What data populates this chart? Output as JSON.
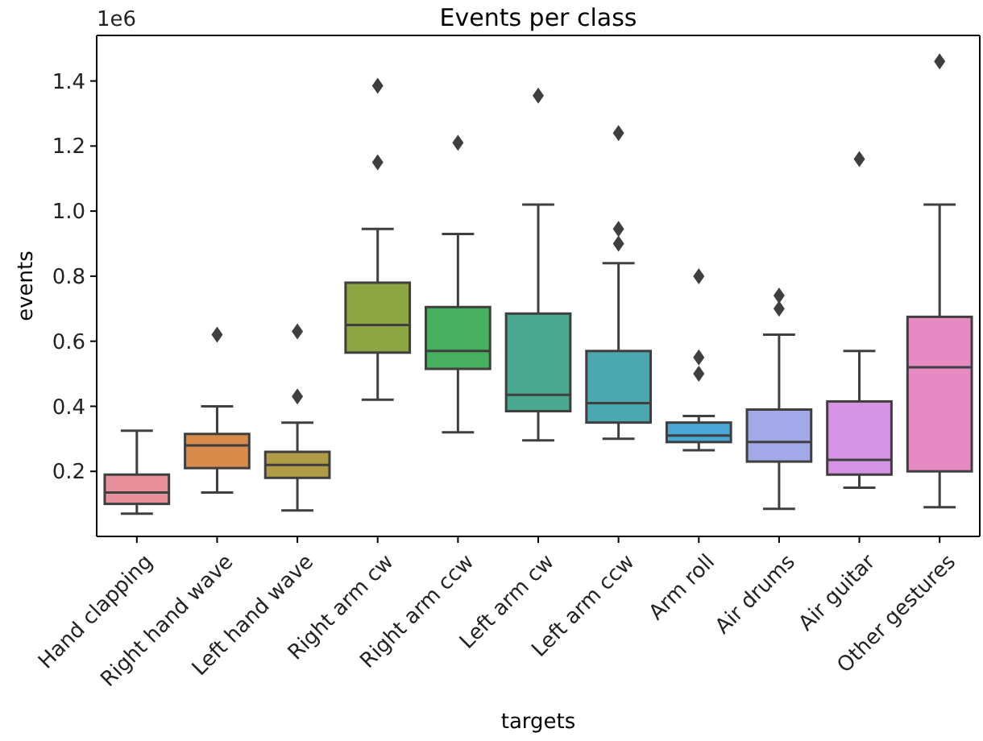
{
  "chart_data": {
    "type": "box",
    "title": "Events per class",
    "xlabel": "targets",
    "ylabel": "events",
    "annotations": [
      "1e6"
    ],
    "categories": [
      "Hand clapping",
      "Right hand wave",
      "Left hand wave",
      "Right arm cw",
      "Right arm ccw",
      "Left arm cw",
      "Left arm ccw",
      "Arm roll",
      "Air drums",
      "Air guitar",
      "Other gestures"
    ],
    "colors": [
      "#e8919c",
      "#d98b4c",
      "#b09c44",
      "#8da543",
      "#47b060",
      "#4aa88f",
      "#4aa8b0",
      "#4aa6d4",
      "#a3a8e8",
      "#d593e3",
      "#e68ac4"
    ],
    "boxes": [
      {
        "low": 0.07,
        "q1": 0.1,
        "median": 0.135,
        "q3": 0.19,
        "high": 0.325
      },
      {
        "low": 0.135,
        "q1": 0.21,
        "median": 0.28,
        "q3": 0.315,
        "high": 0.4,
        "outliers": [
          0.62
        ]
      },
      {
        "low": 0.08,
        "q1": 0.18,
        "median": 0.22,
        "q3": 0.26,
        "high": 0.35,
        "outliers": [
          0.43,
          0.63
        ]
      },
      {
        "low": 0.42,
        "q1": 0.565,
        "median": 0.65,
        "q3": 0.78,
        "high": 0.945,
        "outliers": [
          1.15,
          1.385
        ]
      },
      {
        "low": 0.32,
        "q1": 0.515,
        "median": 0.57,
        "q3": 0.705,
        "high": 0.93,
        "outliers": [
          1.21
        ]
      },
      {
        "low": 0.295,
        "q1": 0.385,
        "median": 0.435,
        "q3": 0.685,
        "high": 1.02,
        "outliers": [
          1.355
        ]
      },
      {
        "low": 0.3,
        "q1": 0.35,
        "median": 0.41,
        "q3": 0.57,
        "high": 0.84,
        "outliers": [
          0.9,
          0.945,
          1.24
        ]
      },
      {
        "low": 0.265,
        "q1": 0.29,
        "median": 0.31,
        "q3": 0.35,
        "high": 0.37,
        "outliers": [
          0.5,
          0.55,
          0.8
        ]
      },
      {
        "low": 0.085,
        "q1": 0.23,
        "median": 0.29,
        "q3": 0.39,
        "high": 0.62,
        "outliers": [
          0.7,
          0.74
        ]
      },
      {
        "low": 0.15,
        "q1": 0.19,
        "median": 0.235,
        "q3": 0.415,
        "high": 0.57,
        "outliers": [
          1.16
        ]
      },
      {
        "low": 0.09,
        "q1": 0.2,
        "median": 0.52,
        "q3": 0.675,
        "high": 1.02,
        "outliers": [
          1.46
        ]
      }
    ],
    "ylim": [
      0,
      1.54
    ],
    "yticks": [
      {
        "value": 0.2,
        "label": "0.2"
      },
      {
        "value": 0.4,
        "label": "0.4"
      },
      {
        "value": 0.6,
        "label": "0.6"
      },
      {
        "value": 0.8,
        "label": "0.8"
      },
      {
        "value": 1,
        "label": "1.0"
      },
      {
        "value": 1.2,
        "label": "1.2"
      },
      {
        "value": 1.4,
        "label": "1.4"
      }
    ],
    "marker": "diamond",
    "grid": false
  }
}
